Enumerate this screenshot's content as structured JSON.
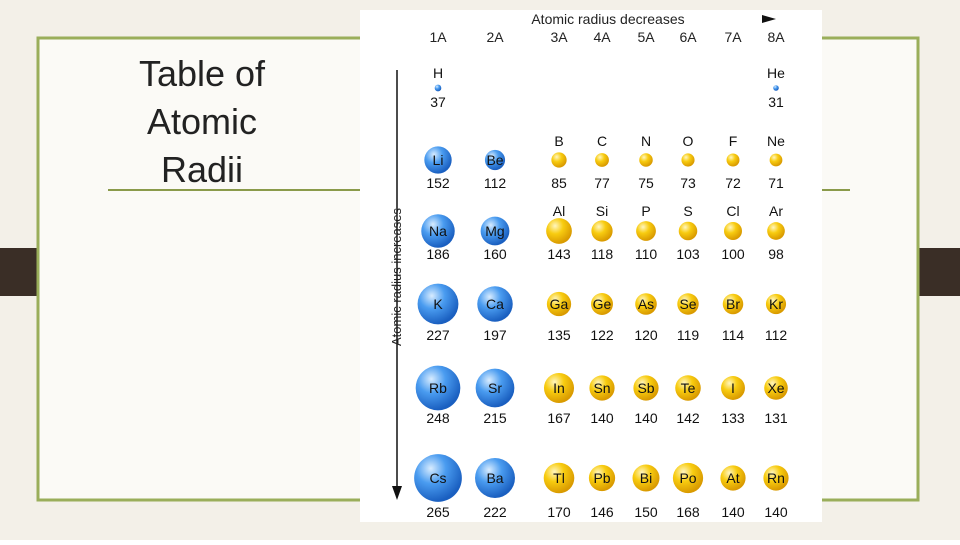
{
  "slide": {
    "title": [
      "Table of",
      "Atomic",
      "Radii"
    ]
  },
  "figure": {
    "groups": [
      "1A",
      "2A",
      "3A",
      "4A",
      "5A",
      "6A",
      "7A",
      "8A"
    ],
    "top_label": "Atomic radius decreases",
    "side_label": "Atomic radius increases",
    "periods": [
      [
        {
          "symbol": "H",
          "radius": 37
        },
        null,
        null,
        null,
        null,
        null,
        null,
        {
          "symbol": "He",
          "radius": 31
        }
      ],
      [
        {
          "symbol": "Li",
          "radius": 152
        },
        {
          "symbol": "Be",
          "radius": 112
        },
        {
          "symbol": "B",
          "radius": 85
        },
        {
          "symbol": "C",
          "radius": 77
        },
        {
          "symbol": "N",
          "radius": 75
        },
        {
          "symbol": "O",
          "radius": 73
        },
        {
          "symbol": "F",
          "radius": 72
        },
        {
          "symbol": "Ne",
          "radius": 71
        }
      ],
      [
        {
          "symbol": "Na",
          "radius": 186
        },
        {
          "symbol": "Mg",
          "radius": 160
        },
        {
          "symbol": "Al",
          "radius": 143
        },
        {
          "symbol": "Si",
          "radius": 118
        },
        {
          "symbol": "P",
          "radius": 110
        },
        {
          "symbol": "S",
          "radius": 103
        },
        {
          "symbol": "Cl",
          "radius": 100
        },
        {
          "symbol": "Ar",
          "radius": 98
        }
      ],
      [
        {
          "symbol": "K",
          "radius": 227
        },
        {
          "symbol": "Ca",
          "radius": 197
        },
        {
          "symbol": "Ga",
          "radius": 135
        },
        {
          "symbol": "Ge",
          "radius": 122
        },
        {
          "symbol": "As",
          "radius": 120
        },
        {
          "symbol": "Se",
          "radius": 119
        },
        {
          "symbol": "Br",
          "radius": 114
        },
        {
          "symbol": "Kr",
          "radius": 112
        }
      ],
      [
        {
          "symbol": "Rb",
          "radius": 248
        },
        {
          "symbol": "Sr",
          "radius": 215
        },
        {
          "symbol": "In",
          "radius": 167
        },
        {
          "symbol": "Sn",
          "radius": 140
        },
        {
          "symbol": "Sb",
          "radius": 140
        },
        {
          "symbol": "Te",
          "radius": 142
        },
        {
          "symbol": "I",
          "radius": 133
        },
        {
          "symbol": "Xe",
          "radius": 131
        }
      ],
      [
        {
          "symbol": "Cs",
          "radius": 265
        },
        {
          "symbol": "Ba",
          "radius": 222
        },
        {
          "symbol": "Tl",
          "radius": 170
        },
        {
          "symbol": "Pb",
          "radius": 146
        },
        {
          "symbol": "Bi",
          "radius": 150
        },
        {
          "symbol": "Po",
          "radius": 168
        },
        {
          "symbol": "At",
          "radius": 140
        },
        {
          "symbol": "Rn",
          "radius": 140
        }
      ]
    ]
  }
}
